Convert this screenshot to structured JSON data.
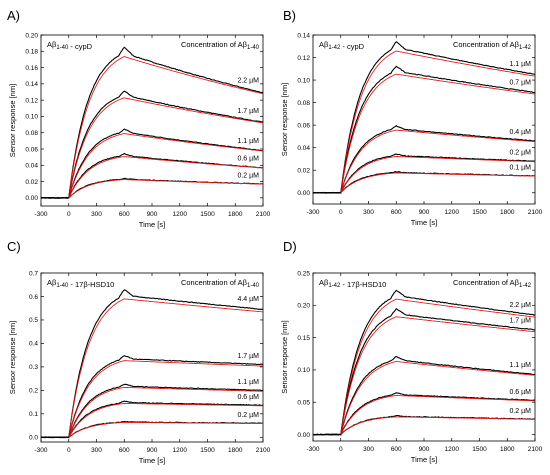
{
  "chart_data": [
    {
      "type": "line",
      "panel_label": "A)",
      "annotation": "Aβ1-40 - cypD",
      "legend_title": "Concentration of Aβ1-40",
      "xlabel": "Time [s]",
      "ylabel": "Sensor response [nm]",
      "xlim": [
        -300,
        2100
      ],
      "ylim": [
        -0.01,
        0.2
      ],
      "xticks": [
        -300,
        0,
        300,
        600,
        900,
        1200,
        1500,
        1800,
        2100
      ],
      "yticks": [
        0.0,
        0.02,
        0.04,
        0.06,
        0.08,
        0.1,
        0.12,
        0.14,
        0.16,
        0.18,
        0.2
      ],
      "ytick_labels": [
        "0.00",
        "0.02",
        "0.04",
        "0.06",
        "0.08",
        "0.10",
        "0.12",
        "0.14",
        "0.16",
        "0.18",
        "0.20"
      ],
      "colors": {
        "measured": "#000000",
        "fit": "#e8211f"
      },
      "series": [
        {
          "label": "2.2 µM",
          "peak": 0.178,
          "end": 0.129
        },
        {
          "label": "1.7 µM",
          "peak": 0.126,
          "end": 0.093
        },
        {
          "label": "1.1 µM",
          "peak": 0.081,
          "end": 0.058
        },
        {
          "label": "0.6 µM",
          "peak": 0.052,
          "end": 0.037
        },
        {
          "label": "0.2 µM",
          "peak": 0.023,
          "end": 0.017
        }
      ]
    },
    {
      "type": "line",
      "panel_label": "B)",
      "annotation": "Aβ1-42 - cypD",
      "legend_title": "Concentration of Aβ1-42",
      "xlabel": "Time [s]",
      "ylabel": "Sensor response [nm]",
      "xlim": [
        -300,
        2100
      ],
      "ylim": [
        -0.01,
        0.14
      ],
      "xticks": [
        -300,
        0,
        300,
        600,
        900,
        1200,
        1500,
        1800,
        2100
      ],
      "yticks": [
        0.0,
        0.02,
        0.04,
        0.06,
        0.08,
        0.1,
        0.12,
        0.14
      ],
      "ytick_labels": [
        "0.00",
        "0.02",
        "0.04",
        "0.06",
        "0.08",
        "0.10",
        "0.12",
        "0.14"
      ],
      "colors": {
        "measured": "#000000",
        "fit": "#e8211f"
      },
      "series": [
        {
          "label": "1.1 µM",
          "peak": 0.129,
          "end": 0.105
        },
        {
          "label": "0.7 µM",
          "peak": 0.108,
          "end": 0.089
        },
        {
          "label": "0.4 µM",
          "peak": 0.057,
          "end": 0.046
        },
        {
          "label": "0.2 µM",
          "peak": 0.033,
          "end": 0.028
        },
        {
          "label": "0.1 µM",
          "peak": 0.018,
          "end": 0.015
        }
      ]
    },
    {
      "type": "line",
      "panel_label": "C)",
      "annotation": "Aβ1-40 - 17β-HSD10",
      "legend_title": "Concentration of Aβ1-40",
      "xlabel": "Time [s]",
      "ylabel": "Sensor response [nm]",
      "xlim": [
        -300,
        2100
      ],
      "ylim": [
        -0.02,
        0.7
      ],
      "xticks": [
        -300,
        0,
        300,
        600,
        900,
        1200,
        1500,
        1800,
        2100
      ],
      "yticks": [
        0.0,
        0.1,
        0.2,
        0.3,
        0.4,
        0.5,
        0.6,
        0.7
      ],
      "ytick_labels": [
        "0.0",
        "0.1",
        "0.2",
        "0.3",
        "0.4",
        "0.5",
        "0.6",
        "0.7"
      ],
      "colors": {
        "measured": "#000000",
        "fit": "#e8211f"
      },
      "series": [
        {
          "label": "4.4 µM",
          "peak": 0.605,
          "end": 0.545
        },
        {
          "label": "1.7 µM",
          "peak": 0.335,
          "end": 0.31
        },
        {
          "label": "1.1 µM",
          "peak": 0.218,
          "end": 0.2
        },
        {
          "label": "0.6 µM",
          "peak": 0.148,
          "end": 0.137
        },
        {
          "label": "0.2 µM",
          "peak": 0.065,
          "end": 0.06
        }
      ]
    },
    {
      "type": "line",
      "panel_label": "D)",
      "annotation": "Aβ1-42 - 17β-HSD10",
      "legend_title": "Concentration of Aβ1-42",
      "xlabel": "Time [s]",
      "ylabel": "Sensor response [nm]",
      "xlim": [
        -300,
        2100
      ],
      "ylim": [
        -0.01,
        0.25
      ],
      "xticks": [
        -300,
        0,
        300,
        600,
        900,
        1200,
        1500,
        1800,
        2100
      ],
      "yticks": [
        0.0,
        0.05,
        0.1,
        0.15,
        0.2,
        0.25
      ],
      "ytick_labels": [
        "0.00",
        "0.05",
        "0.10",
        "0.15",
        "0.20",
        "0.25"
      ],
      "colors": {
        "measured": "#000000",
        "fit": "#e8211f"
      },
      "series": [
        {
          "label": "2.2 µM",
          "peak": 0.215,
          "end": 0.185
        },
        {
          "label": "1.7 µM",
          "peak": 0.187,
          "end": 0.162
        },
        {
          "label": "1.1 µM",
          "peak": 0.116,
          "end": 0.093
        },
        {
          "label": "0.6 µM",
          "peak": 0.062,
          "end": 0.053
        },
        {
          "label": "0.2 µM",
          "peak": 0.028,
          "end": 0.024
        }
      ]
    }
  ]
}
